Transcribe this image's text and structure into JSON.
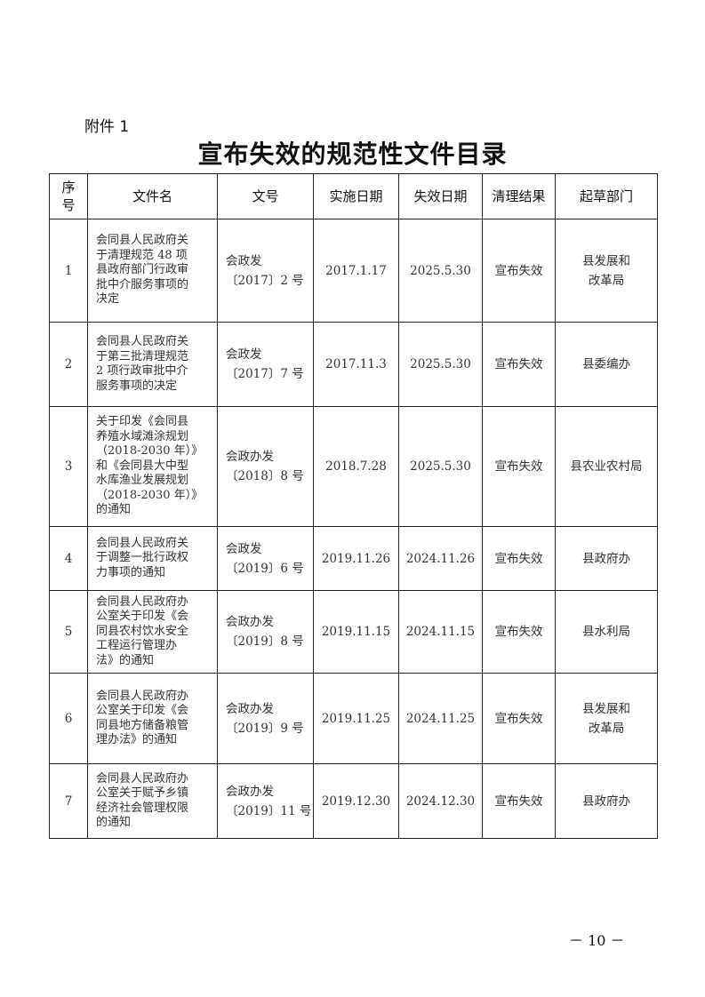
{
  "attachment_label": "附件 1",
  "title": "宣布失效的规范性文件目录",
  "table": {
    "headers": [
      "序\n号",
      "文件名",
      "文号",
      "实施日期",
      "失效日期",
      "清理结果",
      "起草部门"
    ],
    "rows": [
      {
        "no": "1",
        "name": "会同县人民政府关\n于清理规范 48 项\n县政府部门行政审\n批中介服务事项的\n决定",
        "doc_no": "会政发\n〔2017〕2 号",
        "start": "2017.1.17",
        "end": "2025.5.30",
        "result": "宣布失效",
        "dept": "县发展和\n改革局"
      },
      {
        "no": "2",
        "name": "会同县人民政府关\n于第三批清理规范\n2 项行政审批中介\n服务事项的决定",
        "doc_no": "会政发\n〔2017〕7 号",
        "start": "2017.11.3",
        "end": "2025.5.30",
        "result": "宣布失效",
        "dept": "县委编办"
      },
      {
        "no": "3",
        "name": "关于印发《会同县\n养殖水域滩涂规划\n（2018-2030 年）》\n和《会同县大中型\n水库渔业发展规划\n（2018-2030 年）》\n的通知",
        "doc_no": "会政办发\n〔2018〕8 号",
        "start": "2018.7.28",
        "end": "2025.5.30",
        "result": "宣布失效",
        "dept": "县农业农村局"
      },
      {
        "no": "4",
        "name": "会同县人民政府关\n于调整一批行政权\n力事项的通知",
        "doc_no": "会政发\n〔2019〕6 号",
        "start": "2019.11.26",
        "end": "2024.11.26",
        "result": "宣布失效",
        "dept": "县政府办"
      },
      {
        "no": "5",
        "name": "会同县人民政府办\n公室关于印发《会\n同县农村饮水安全\n工程运行管理办\n法》的通知",
        "doc_no": "会政办发\n〔2019〕8 号",
        "start": "2019.11.15",
        "end": "2024.11.15",
        "result": "宣布失效",
        "dept": "县水利局"
      },
      {
        "no": "6",
        "name": "会同县人民政府办\n公室关于印发《会\n同县地方储备粮管\n理办法》的通知",
        "doc_no": "会政办发\n〔2019〕9 号",
        "start": "2019.11.25",
        "end": "2024.11.25",
        "result": "宣布失效",
        "dept": "县发展和\n改革局"
      },
      {
        "no": "7",
        "name": "会同县人民政府办\n公室关于赋予乡镇\n经济社会管理权限\n的通知",
        "doc_no": "会政办发\n〔2019〕11 号",
        "start": "2019.12.30",
        "end": "2024.12.30",
        "result": "宣布失效",
        "dept": "县政府办"
      }
    ]
  },
  "page_number": "－ 10 －"
}
